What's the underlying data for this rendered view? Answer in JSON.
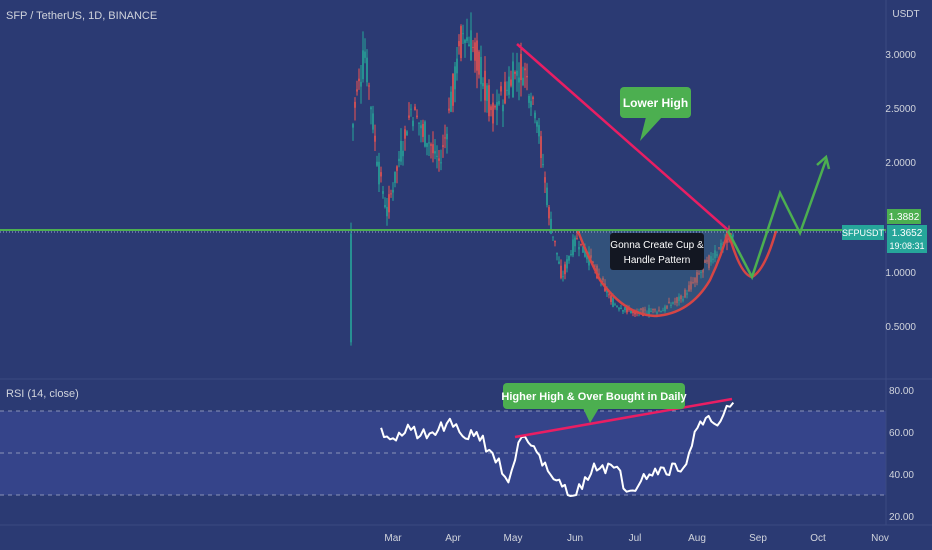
{
  "symbol_title": "SFP / TetherUS, 1D, BINANCE",
  "price_axis": {
    "unit_label": "USDT",
    "ticks": [
      "3.0000",
      "2.5000",
      "2.0000",
      "1.0000",
      "0.5000"
    ],
    "tick_values": [
      3.0,
      2.5,
      2.0,
      1.0,
      0.5
    ]
  },
  "price_badges": {
    "level_price": "1.3882",
    "ticker": "SFPUSDT",
    "last_price": "1.3652",
    "countdown": "19:08:31"
  },
  "annotations": {
    "lower_high": "Lower High",
    "cup_handle_line1": "Gonna Create Cup &",
    "cup_handle_line2": "Handle Pattern",
    "rsi_callout": "Higher High & Over Bought in Daily"
  },
  "rsi": {
    "label": "RSI (14, close)",
    "ticks": [
      "80.00",
      "60.00",
      "40.00",
      "20.00"
    ],
    "tick_values": [
      80,
      60,
      40,
      20
    ],
    "band_upper": 70,
    "band_lower": 30
  },
  "time_axis": {
    "labels": [
      "Mar",
      "Apr",
      "May",
      "Jun",
      "Jul",
      "Aug",
      "Sep",
      "Oct",
      "Nov"
    ]
  },
  "colors": {
    "background": "#2b3a73",
    "up_candle": "#26a69a",
    "down_candle": "#ef5350",
    "support_line": "#4caf50",
    "trend_line": "#e91e63",
    "callout": "#4caf50",
    "projection": "#4caf50",
    "cup_curve": "#d64545",
    "rsi_line": "#ffffff"
  },
  "chart_data": [
    {
      "type": "candlestick",
      "title": "SFP / TetherUS, 1D, BINANCE",
      "x_range": [
        "2021-02-08",
        "2021-08-19"
      ],
      "ylim": [
        0.3,
        3.5
      ],
      "ylabel": "USDT",
      "support_level": 1.3882,
      "last_price": 1.3652,
      "approx_closes": [
        {
          "x": "2021-02-08",
          "y": 1.35
        },
        {
          "x": "2021-02-09",
          "y": 2.45
        },
        {
          "x": "2021-02-15",
          "y": 3.0
        },
        {
          "x": "2021-02-22",
          "y": 1.9
        },
        {
          "x": "2021-02-26",
          "y": 1.55
        },
        {
          "x": "2021-03-10",
          "y": 2.5
        },
        {
          "x": "2021-03-25",
          "y": 2.0
        },
        {
          "x": "2021-04-05",
          "y": 3.2
        },
        {
          "x": "2021-04-12",
          "y": 3.0
        },
        {
          "x": "2021-04-20",
          "y": 2.45
        },
        {
          "x": "2021-04-28",
          "y": 2.7
        },
        {
          "x": "2021-05-05",
          "y": 2.9
        },
        {
          "x": "2021-05-12",
          "y": 2.5
        },
        {
          "x": "2021-05-19",
          "y": 1.45
        },
        {
          "x": "2021-05-25",
          "y": 0.95
        },
        {
          "x": "2021-06-01",
          "y": 1.3
        },
        {
          "x": "2021-06-10",
          "y": 1.05
        },
        {
          "x": "2021-06-20",
          "y": 0.7
        },
        {
          "x": "2021-07-01",
          "y": 0.62
        },
        {
          "x": "2021-07-15",
          "y": 0.65
        },
        {
          "x": "2021-07-25",
          "y": 0.78
        },
        {
          "x": "2021-08-05",
          "y": 1.05
        },
        {
          "x": "2021-08-19",
          "y": 1.37
        }
      ],
      "annotations": [
        "Lower High",
        "Gonna Create Cup & Handle Pattern"
      ]
    },
    {
      "type": "line",
      "title": "RSI (14, close)",
      "x_range": [
        "2021-02-23",
        "2021-08-19"
      ],
      "ylim": [
        18,
        83
      ],
      "bands": [
        30,
        70
      ],
      "series": [
        {
          "values": [
            {
              "x": "2021-02-23",
              "y": 62
            },
            {
              "x": "2021-03-01",
              "y": 57
            },
            {
              "x": "2021-03-10",
              "y": 61
            },
            {
              "x": "2021-03-18",
              "y": 57
            },
            {
              "x": "2021-03-28",
              "y": 64
            },
            {
              "x": "2021-04-05",
              "y": 58
            },
            {
              "x": "2021-04-12",
              "y": 60
            },
            {
              "x": "2021-04-20",
              "y": 50
            },
            {
              "x": "2021-04-28",
              "y": 36
            },
            {
              "x": "2021-05-03",
              "y": 55
            },
            {
              "x": "2021-05-08",
              "y": 55
            },
            {
              "x": "2021-05-15",
              "y": 44
            },
            {
              "x": "2021-05-25",
              "y": 34
            },
            {
              "x": "2021-06-01",
              "y": 30
            },
            {
              "x": "2021-06-10",
              "y": 45
            },
            {
              "x": "2021-06-20",
              "y": 43
            },
            {
              "x": "2021-06-28",
              "y": 32
            },
            {
              "x": "2021-07-05",
              "y": 40
            },
            {
              "x": "2021-07-15",
              "y": 43
            },
            {
              "x": "2021-07-25",
              "y": 43
            },
            {
              "x": "2021-08-01",
              "y": 62
            },
            {
              "x": "2021-08-08",
              "y": 65
            },
            {
              "x": "2021-08-14",
              "y": 68
            },
            {
              "x": "2021-08-19",
              "y": 74
            }
          ]
        }
      ],
      "annotations": [
        "Higher High & Over Bought in Daily"
      ]
    }
  ]
}
